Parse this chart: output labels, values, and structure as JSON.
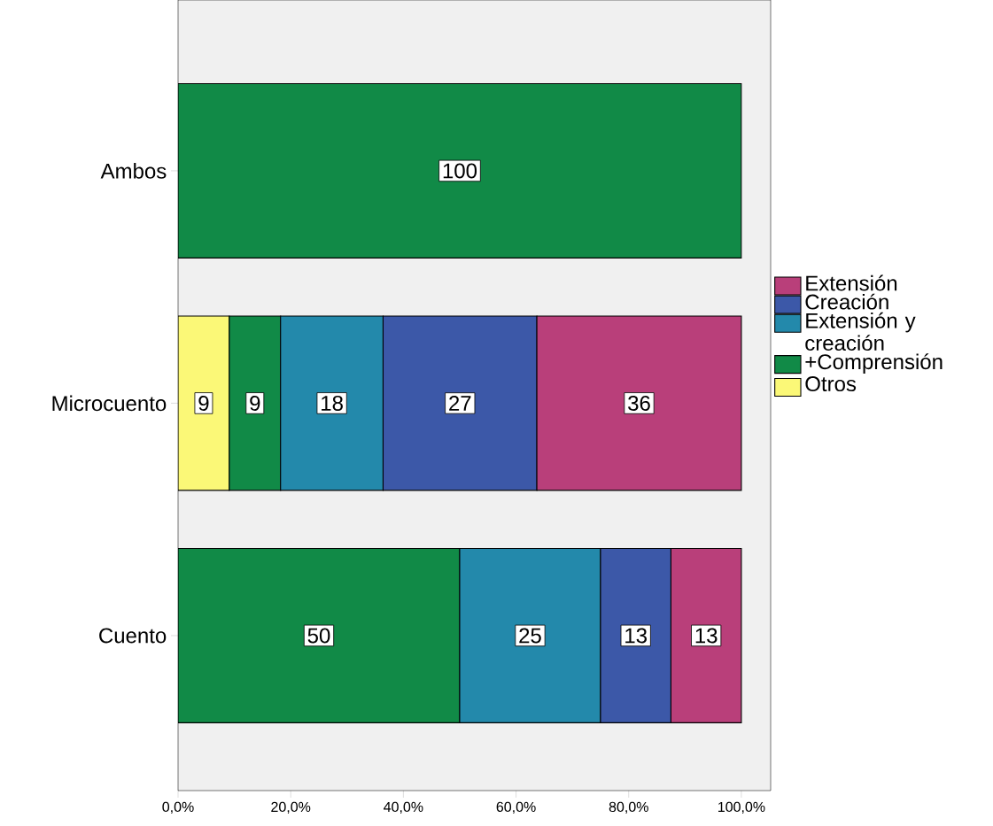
{
  "chart_data": {
    "type": "bar",
    "orientation": "horizontal",
    "stacked": true,
    "legend": "right",
    "categories": [
      "Ambos",
      "Microcuento",
      "Cuento"
    ],
    "series": [
      {
        "name": "Otros",
        "color": "#fbf877",
        "values": [
          null,
          9.1,
          null
        ],
        "value_labels": [
          null,
          "9",
          null
        ]
      },
      {
        "name": "+Comprensión",
        "color": "#118a47",
        "values": [
          100,
          9.1,
          50
        ],
        "value_labels": [
          "100",
          "9",
          "50"
        ]
      },
      {
        "name": "Extensión y creación",
        "color": "#2389ab",
        "values": [
          null,
          18.2,
          25
        ],
        "value_labels": [
          null,
          "18",
          "25"
        ]
      },
      {
        "name": "Creación",
        "color": "#3c58a8",
        "values": [
          null,
          27.3,
          12.5
        ],
        "value_labels": [
          null,
          "27",
          "13"
        ]
      },
      {
        "name": "Extensión",
        "color": "#b93f7a",
        "values": [
          null,
          36.3,
          12.5
        ],
        "value_labels": [
          null,
          "36",
          "13"
        ]
      }
    ],
    "xlim": [
      0,
      105.2
    ],
    "xticks": [
      {
        "value": 0,
        "label": "0,0%"
      },
      {
        "value": 20,
        "label": "20,0%"
      },
      {
        "value": 40,
        "label": "40,0%"
      },
      {
        "value": 60,
        "label": "60,0%"
      },
      {
        "value": 80,
        "label": "80,0%"
      },
      {
        "value": 100,
        "label": "100,0%"
      }
    ]
  }
}
